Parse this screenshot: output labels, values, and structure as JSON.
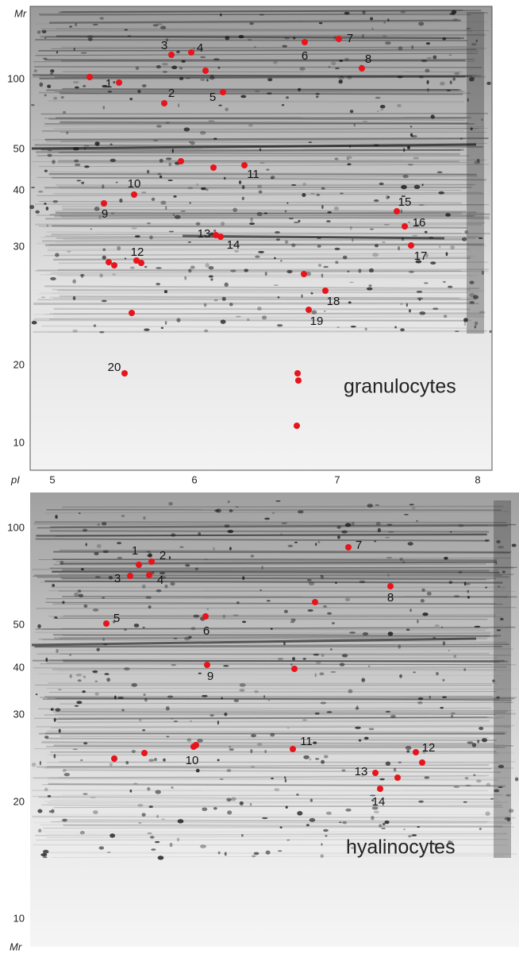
{
  "top_panel": {
    "axis_label": "Mr",
    "mr_ticks": [
      "100",
      "50",
      "40",
      "30",
      "20",
      "10"
    ],
    "pi_axis_label": "pI",
    "pi_ticks": [
      "5",
      "6",
      "7",
      "8"
    ],
    "spot_labels": [
      "1",
      "2",
      "3",
      "4",
      "5",
      "6",
      "7",
      "8",
      "9",
      "10",
      "11",
      "12",
      "13",
      "14",
      "15",
      "16",
      "17",
      "18",
      "19",
      "20"
    ],
    "cell_type": "granulocytes"
  },
  "bottom_panel": {
    "mr_ticks": [
      "100",
      "50",
      "40",
      "30",
      "20",
      "10"
    ],
    "axis_label": "Mr",
    "spot_labels": [
      "1",
      "2",
      "3",
      "4",
      "5",
      "6",
      "7",
      "8",
      "9",
      "10",
      "11",
      "12",
      "13",
      "14"
    ],
    "cell_type": "hyalinocytes"
  }
}
